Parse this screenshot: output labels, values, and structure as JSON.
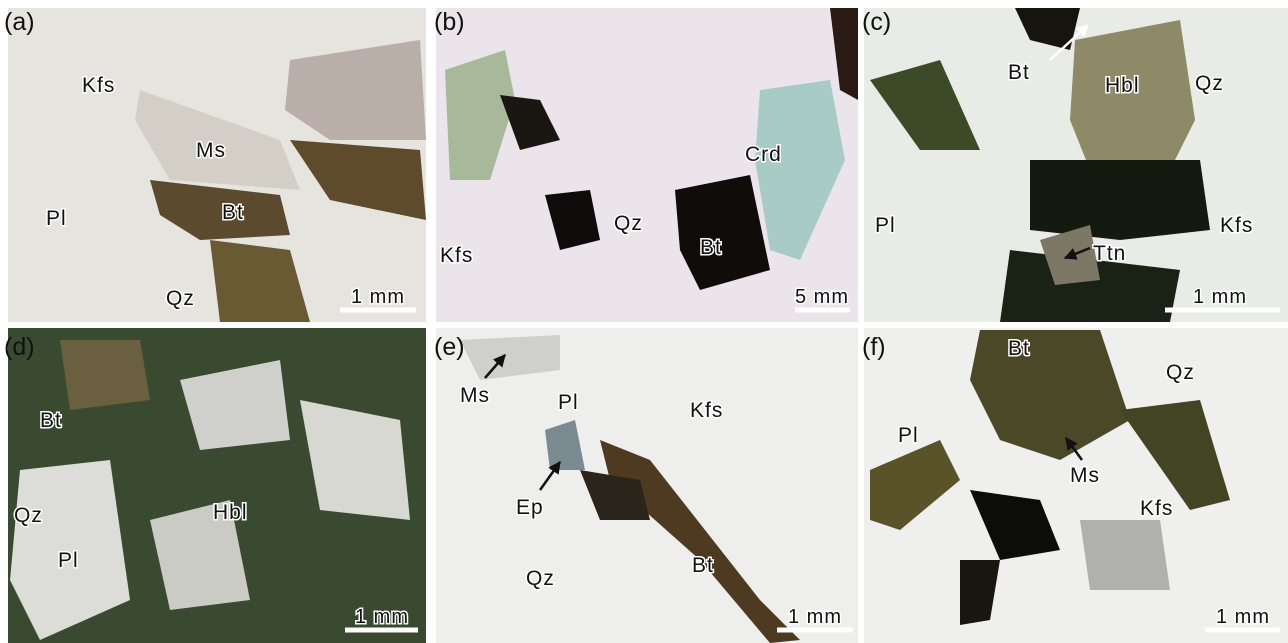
{
  "panels": [
    {
      "label": "(a)",
      "annotations": [
        "Kfs",
        "Ms",
        "Pl",
        "Bt",
        "Qz"
      ],
      "scale": "1 mm"
    },
    {
      "label": "(b)",
      "annotations": [
        "Crd",
        "Qz",
        "Bt",
        "Kfs"
      ],
      "scale": "5 mm"
    },
    {
      "label": "(c)",
      "annotations": [
        "Bt",
        "Hbl",
        "Qz",
        "Pl",
        "Kfs",
        "Ttn"
      ],
      "scale": "1 mm"
    },
    {
      "label": "(d)",
      "annotations": [
        "Bt",
        "Qz",
        "Hbl",
        "Pl"
      ],
      "scale": "1 mm"
    },
    {
      "label": "(e)",
      "annotations": [
        "Ms",
        "Pl",
        "Kfs",
        "Ep",
        "Qz",
        "Bt"
      ],
      "scale": "1 mm"
    },
    {
      "label": "(f)",
      "annotations": [
        "Bt",
        "Qz",
        "Pl",
        "Ms",
        "Kfs"
      ],
      "scale": "1 mm"
    }
  ]
}
